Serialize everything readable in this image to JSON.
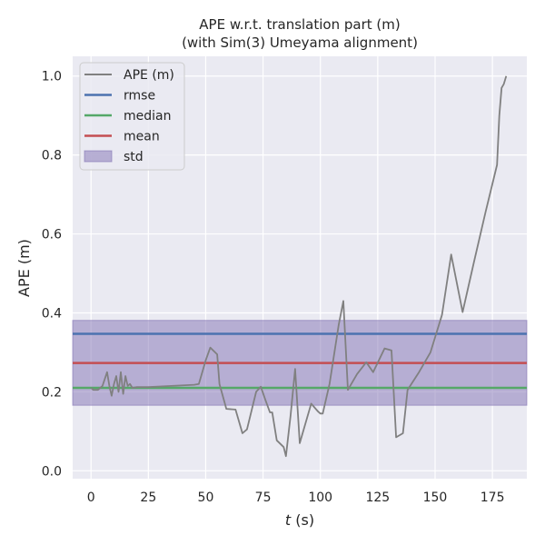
{
  "chart_data": {
    "type": "line",
    "title": "APE w.r.t. translation part (m)",
    "subtitle": "(with Sim(3) Umeyama alignment)",
    "xlabel_italic": "t",
    "xlabel_unit": " (s)",
    "ylabel": "APE (m)",
    "xlim": [
      -8,
      190
    ],
    "ylim": [
      -0.02,
      1.05
    ],
    "xticks": [
      0,
      25,
      50,
      75,
      100,
      125,
      150,
      175
    ],
    "yticks": [
      0.0,
      0.2,
      0.4,
      0.6,
      0.8,
      1.0
    ],
    "xtick_labels": [
      "0",
      "25",
      "50",
      "75",
      "100",
      "125",
      "150",
      "175"
    ],
    "ytick_labels": [
      "0.0",
      "0.2",
      "0.4",
      "0.6",
      "0.8",
      "1.0"
    ],
    "grid": true,
    "legend_position": "top-left",
    "colors": {
      "background": "#eaeaf2",
      "grid": "#ffffff",
      "ape": "#808080",
      "rmse": "#4c72b0",
      "median": "#55a868",
      "mean": "#c44e52",
      "std": "#8172b3"
    },
    "legend": [
      "APE (m)",
      "rmse",
      "median",
      "mean",
      "std"
    ],
    "stats": {
      "rmse": 0.347,
      "median": 0.21,
      "mean": 0.273,
      "std_low": 0.166,
      "std_high": 0.381
    },
    "series": [
      {
        "name": "APE (m)",
        "x": [
          0,
          1,
          3,
          5,
          7,
          8,
          9,
          10,
          11,
          12,
          13,
          14,
          15,
          16,
          17,
          18,
          20,
          25,
          35,
          45,
          47,
          50,
          52,
          55,
          56,
          59,
          63,
          66,
          68,
          72,
          74,
          76,
          78,
          79,
          81,
          84,
          85,
          87,
          89,
          91,
          96,
          99,
          100,
          101,
          104,
          108,
          110,
          112,
          116,
          120,
          123,
          128,
          131,
          133,
          136,
          138,
          143,
          148,
          153,
          157,
          162,
          167,
          172,
          177,
          178,
          179,
          180,
          181
        ],
        "y": [
          0.21,
          0.205,
          0.205,
          0.215,
          0.25,
          0.215,
          0.19,
          0.22,
          0.24,
          0.2,
          0.25,
          0.195,
          0.24,
          0.215,
          0.22,
          0.21,
          0.212,
          0.212,
          0.215,
          0.218,
          0.22,
          0.28,
          0.312,
          0.295,
          0.22,
          0.157,
          0.155,
          0.095,
          0.105,
          0.2,
          0.213,
          0.18,
          0.148,
          0.148,
          0.077,
          0.06,
          0.037,
          0.14,
          0.258,
          0.07,
          0.17,
          0.15,
          0.145,
          0.145,
          0.22,
          0.37,
          0.43,
          0.205,
          0.245,
          0.275,
          0.25,
          0.31,
          0.305,
          0.085,
          0.095,
          0.205,
          0.25,
          0.3,
          0.395,
          0.548,
          0.402,
          0.53,
          0.655,
          0.775,
          0.9,
          0.97,
          0.98,
          1.0
        ]
      }
    ]
  }
}
